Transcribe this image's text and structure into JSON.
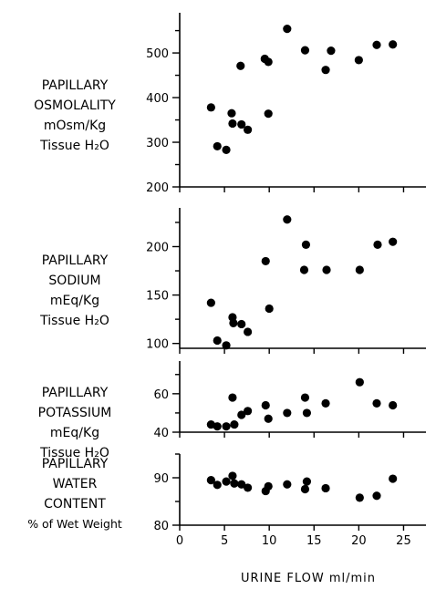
{
  "chart_data": [
    {
      "type": "scatter",
      "ylabel_lines": [
        "PAPILLARY",
        "OSMOLALITY",
        "mOsm/Kg",
        "Tissue H₂O"
      ],
      "ylim": [
        200,
        590
      ],
      "yticks": [
        200,
        300,
        400,
        500
      ],
      "x_tick_labels": false,
      "points": [
        {
          "x": 3.5,
          "y": 378
        },
        {
          "x": 4.2,
          "y": 291
        },
        {
          "x": 5.2,
          "y": 283
        },
        {
          "x": 5.8,
          "y": 365
        },
        {
          "x": 5.9,
          "y": 342
        },
        {
          "x": 6.8,
          "y": 471
        },
        {
          "x": 6.9,
          "y": 340
        },
        {
          "x": 7.6,
          "y": 328
        },
        {
          "x": 9.5,
          "y": 487
        },
        {
          "x": 9.9,
          "y": 480
        },
        {
          "x": 9.9,
          "y": 364
        },
        {
          "x": 12.0,
          "y": 554
        },
        {
          "x": 14.0,
          "y": 506
        },
        {
          "x": 16.3,
          "y": 462
        },
        {
          "x": 16.9,
          "y": 505
        },
        {
          "x": 20.0,
          "y": 484
        },
        {
          "x": 22.0,
          "y": 518
        },
        {
          "x": 23.8,
          "y": 519
        }
      ]
    },
    {
      "type": "scatter",
      "ylabel_lines": [
        "PAPILLARY",
        "SODIUM",
        "mEq/Kg",
        "Tissue H₂O"
      ],
      "ylim": [
        95,
        240
      ],
      "yticks": [
        100,
        150,
        200
      ],
      "x_tick_labels": false,
      "points": [
        {
          "x": 3.5,
          "y": 142
        },
        {
          "x": 4.2,
          "y": 103
        },
        {
          "x": 5.2,
          "y": 98
        },
        {
          "x": 5.9,
          "y": 127
        },
        {
          "x": 6.0,
          "y": 121
        },
        {
          "x": 6.9,
          "y": 120
        },
        {
          "x": 7.6,
          "y": 112
        },
        {
          "x": 9.6,
          "y": 185
        },
        {
          "x": 10.0,
          "y": 136
        },
        {
          "x": 12.0,
          "y": 228
        },
        {
          "x": 13.9,
          "y": 176
        },
        {
          "x": 14.1,
          "y": 202
        },
        {
          "x": 16.4,
          "y": 176
        },
        {
          "x": 20.1,
          "y": 176
        },
        {
          "x": 22.1,
          "y": 202
        },
        {
          "x": 23.8,
          "y": 205
        }
      ]
    },
    {
      "type": "scatter",
      "ylabel_lines": [
        "PAPILLARY",
        "POTASSIUM",
        "mEq/Kg",
        "Tissue H₂O"
      ],
      "ylim": [
        40,
        77
      ],
      "yticks": [
        40,
        60
      ],
      "x_tick_labels": false,
      "points": [
        {
          "x": 3.5,
          "y": 44
        },
        {
          "x": 4.2,
          "y": 43
        },
        {
          "x": 5.2,
          "y": 43
        },
        {
          "x": 5.9,
          "y": 58
        },
        {
          "x": 6.1,
          "y": 44
        },
        {
          "x": 6.9,
          "y": 49
        },
        {
          "x": 7.6,
          "y": 51
        },
        {
          "x": 9.6,
          "y": 54
        },
        {
          "x": 9.9,
          "y": 47
        },
        {
          "x": 12.0,
          "y": 50
        },
        {
          "x": 14.0,
          "y": 58
        },
        {
          "x": 14.2,
          "y": 50
        },
        {
          "x": 16.3,
          "y": 55
        },
        {
          "x": 20.1,
          "y": 66
        },
        {
          "x": 22.0,
          "y": 55
        },
        {
          "x": 23.8,
          "y": 54
        }
      ]
    },
    {
      "type": "scatter",
      "ylabel_lines": [
        "PAPILLARY",
        "WATER",
        "CONTENT",
        "% of Wet Weight"
      ],
      "ylim": [
        80,
        95
      ],
      "yticks": [
        80,
        90
      ],
      "x_tick_labels": true,
      "points": [
        {
          "x": 3.5,
          "y": 89.5
        },
        {
          "x": 4.2,
          "y": 88.5
        },
        {
          "x": 5.2,
          "y": 89.2
        },
        {
          "x": 5.9,
          "y": 90.4
        },
        {
          "x": 6.1,
          "y": 88.8
        },
        {
          "x": 6.9,
          "y": 88.6
        },
        {
          "x": 7.6,
          "y": 87.9
        },
        {
          "x": 9.6,
          "y": 87.2
        },
        {
          "x": 9.9,
          "y": 88.2
        },
        {
          "x": 12.0,
          "y": 88.6
        },
        {
          "x": 14.0,
          "y": 87.6
        },
        {
          "x": 14.2,
          "y": 89.2
        },
        {
          "x": 16.3,
          "y": 87.8
        },
        {
          "x": 20.1,
          "y": 85.8
        },
        {
          "x": 22.0,
          "y": 86.2
        },
        {
          "x": 23.8,
          "y": 89.8
        }
      ]
    }
  ],
  "x_axis": {
    "label": "URINE FLOW ml/min",
    "xlim": [
      0,
      27.5
    ],
    "ticks": [
      0,
      5,
      10,
      15,
      20,
      25
    ]
  }
}
